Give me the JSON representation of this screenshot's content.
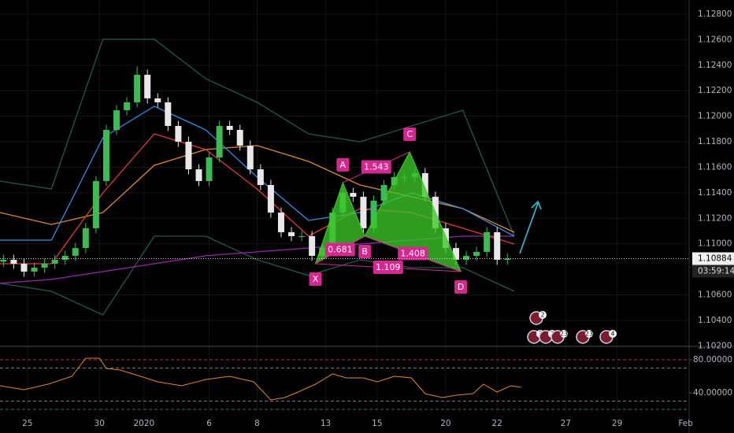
{
  "chart_data": [
    {
      "type": "candlestick",
      "x": [
        1,
        4,
        7,
        10,
        13,
        16,
        19,
        22,
        25,
        28,
        31,
        34,
        37,
        40,
        43,
        46,
        49,
        52,
        55,
        58,
        61,
        64,
        67,
        70,
        73,
        76,
        79,
        82,
        85,
        88,
        91,
        94,
        97,
        100,
        103,
        106,
        109,
        112,
        115,
        118,
        121,
        124,
        127,
        130,
        133,
        136,
        139,
        142,
        145,
        148
      ],
      "open": [
        1.1086,
        1.10875,
        1.10844,
        1.10782,
        1.10813,
        1.10844,
        1.10875,
        1.10906,
        1.10967,
        1.11122,
        1.11492,
        1.11893,
        1.12047,
        1.12109,
        1.12325,
        1.1214,
        1.12109,
        1.11924,
        1.118,
        1.11584,
        1.11492,
        1.11677,
        1.11924,
        1.11893,
        1.1177,
        1.11584,
        1.11461,
        1.11245,
        1.11091,
        1.1106,
        1.1106,
        1.10906,
        1.10967,
        1.11245,
        1.11399,
        1.11369,
        1.11122,
        1.11338,
        1.11461,
        1.11523,
        1.11523,
        1.11554,
        1.11369,
        1.11122,
        1.10967,
        1.10875,
        1.10906,
        1.10937,
        1.11091,
        1.10875
      ],
      "high": [
        1.10915,
        1.10915,
        1.10884,
        1.10853,
        1.10884,
        1.10915,
        1.10946,
        1.11007,
        1.11162,
        1.11532,
        1.11933,
        1.12087,
        1.12149,
        1.1239,
        1.12365,
        1.1218,
        1.12149,
        1.11964,
        1.1184,
        1.11624,
        1.11717,
        1.11964,
        1.11964,
        1.11933,
        1.1181,
        1.11624,
        1.11501,
        1.11285,
        1.11131,
        1.111,
        1.111,
        1.11007,
        1.11285,
        1.11439,
        1.11439,
        1.11409,
        1.11378,
        1.11501,
        1.11563,
        1.11563,
        1.11594,
        1.11594,
        1.11409,
        1.11162,
        1.11007,
        1.10946,
        1.10977,
        1.11131,
        1.11131,
        1.10924
      ],
      "low": [
        1.1082,
        1.10804,
        1.10742,
        1.10742,
        1.10773,
        1.10804,
        1.10835,
        1.10866,
        1.10927,
        1.11082,
        1.11452,
        1.11853,
        1.12007,
        1.12069,
        1.121,
        1.12069,
        1.11884,
        1.1176,
        1.11544,
        1.11452,
        1.11452,
        1.11637,
        1.11853,
        1.1173,
        1.11544,
        1.11421,
        1.11205,
        1.11051,
        1.1102,
        1.1102,
        1.10866,
        1.10866,
        1.10927,
        1.11205,
        1.11329,
        1.11082,
        1.11082,
        1.11298,
        1.11421,
        1.11483,
        1.11483,
        1.11329,
        1.11082,
        1.10927,
        1.10835,
        1.10835,
        1.10866,
        1.10897,
        1.10835,
        1.10835
      ],
      "close": [
        1.10875,
        1.10844,
        1.10782,
        1.10813,
        1.10844,
        1.10875,
        1.10906,
        1.10967,
        1.11122,
        1.11492,
        1.11893,
        1.12047,
        1.12109,
        1.12325,
        1.1214,
        1.12109,
        1.11924,
        1.118,
        1.11584,
        1.11492,
        1.11677,
        1.11924,
        1.11893,
        1.1177,
        1.11584,
        1.11461,
        1.11245,
        1.11091,
        1.1106,
        1.1106,
        1.10906,
        1.10967,
        1.11245,
        1.11399,
        1.11369,
        1.11122,
        1.11338,
        1.11461,
        1.11523,
        1.11523,
        1.11554,
        1.11369,
        1.11122,
        1.10967,
        1.10875,
        1.10906,
        1.10937,
        1.11091,
        1.10875,
        1.10884
      ],
      "up_color": "#3cba54",
      "down_color": "#e8e8e8",
      "xlim": [
        0,
        201
      ],
      "xticks": [
        {
          "value": 8,
          "label": "25"
        },
        {
          "value": 29,
          "label": "30"
        },
        {
          "value": 42,
          "label": "2020"
        },
        {
          "value": 61,
          "label": "6"
        },
        {
          "value": 75,
          "label": "8"
        },
        {
          "value": 95,
          "label": "13"
        },
        {
          "value": 110,
          "label": "15"
        },
        {
          "value": 130,
          "label": "20"
        },
        {
          "value": 145,
          "label": "22"
        },
        {
          "value": 165,
          "label": "27"
        },
        {
          "value": 180,
          "label": "29"
        },
        {
          "value": 200,
          "label": "Feb"
        }
      ],
      "ylim": [
        1.10196,
        1.12911
      ],
      "yticks": [
        {
          "value": 1.128,
          "label": "1.12800"
        },
        {
          "value": 1.126,
          "label": "1.12600"
        },
        {
          "value": 1.124,
          "label": "1.12400"
        },
        {
          "value": 1.122,
          "label": "1.12200"
        },
        {
          "value": 1.12,
          "label": "1.12000"
        },
        {
          "value": 1.118,
          "label": "1.11800"
        },
        {
          "value": 1.116,
          "label": "1.11600"
        },
        {
          "value": 1.114,
          "label": "1.11400"
        },
        {
          "value": 1.112,
          "label": "1.11200"
        },
        {
          "value": 1.11,
          "label": "1.11000"
        },
        {
          "value": 1.106,
          "label": "1.10600"
        },
        {
          "value": 1.104,
          "label": "1.10400"
        },
        {
          "value": 1.102,
          "label": "1.10200"
        }
      ],
      "line_x": [
        0,
        15,
        30,
        45,
        60,
        75,
        90,
        105,
        120,
        135,
        150
      ],
      "lines": [
        {
          "color": "#1e5a50",
          "values": [
            1.11492,
            1.1143,
            1.12603,
            1.12603,
            1.12294,
            1.12109,
            1.11862,
            1.118,
            1.11924,
            1.12047,
            1.1106
          ]
        },
        {
          "color": "#1e5a50",
          "values": [
            1.1069,
            1.10628,
            1.10443,
            1.1106,
            1.1106,
            1.10875,
            1.10752,
            1.10875,
            1.10813,
            1.10813,
            1.10628
          ]
        },
        {
          "color": "#9c27b0",
          "values": [
            1.1069,
            1.10721,
            1.10782,
            1.10844,
            1.10906,
            1.10937,
            1.10967,
            1.10998,
            1.11029,
            1.1106,
            1.1106
          ]
        },
        {
          "color": "#e0892c",
          "values": [
            1.11245,
            1.11152,
            1.11245,
            1.11615,
            1.11739,
            1.1177,
            1.11646,
            1.11461,
            1.11369,
            1.11276,
            1.11091
          ]
        },
        {
          "color": "#2f8de4",
          "values": [
            1.11029,
            1.11029,
            1.11831,
            1.12078,
            1.11893,
            1.11523,
            1.11183,
            1.11245,
            1.11399,
            1.11276,
            1.1106
          ]
        },
        {
          "color": "#e53935",
          "values": [
            1.10844,
            1.10844,
            1.11399,
            1.11862,
            1.11739,
            1.1143,
            1.1106,
            1.11276,
            1.11245,
            1.11122,
            1.10998
          ]
        }
      ],
      "pattern": {
        "color": "#d6268f",
        "points": [
          {
            "label": "X",
            "x": 92,
            "value": 1.10844
          },
          {
            "label": "A",
            "x": 100,
            "value": 1.1148
          },
          {
            "label": "B",
            "x": 106.4,
            "value": 1.1106
          },
          {
            "label": "C",
            "x": 119.5,
            "value": 1.1172
          },
          {
            "label": "D",
            "x": 134.4,
            "value": 1.10782
          }
        ],
        "ratios": [
          0.681,
          1.543,
          1.408,
          1.109
        ]
      },
      "last_price": {
        "value": 1.10884,
        "label": "1.10884"
      },
      "countdown": "03:59:14",
      "events": [
        "2",
        "3",
        "2",
        "23",
        "23",
        "4"
      ]
    },
    {
      "type": "line",
      "x": [
        0,
        7,
        14,
        21,
        25,
        29,
        31,
        35,
        41,
        46,
        53,
        60,
        67,
        74,
        79,
        83,
        87,
        92,
        97,
        101,
        106,
        110,
        115,
        120,
        124,
        129,
        133,
        138,
        141,
        145,
        149,
        152
      ],
      "values": [
        48.6,
        43.8,
        50.5,
        60,
        81.9,
        81.9,
        69.5,
        67.6,
        60,
        53.3,
        48.6,
        56.2,
        60,
        53.3,
        31.4,
        34.3,
        41,
        50.5,
        62.9,
        58.1,
        58.1,
        53.3,
        60,
        58.1,
        39,
        34.3,
        37.1,
        39,
        50.5,
        41,
        48.6,
        46.7
      ],
      "color": "#e0892c",
      "xlim": [
        0,
        201
      ],
      "ylim": [
        15.2,
        96.2
      ],
      "yticks": [
        {
          "value": 80,
          "label": "80.00000"
        },
        {
          "value": 40,
          "label": "40.00000"
        }
      ],
      "levels": [
        {
          "value": 80,
          "color": "#c62828"
        },
        {
          "value": 70,
          "color": "#777777"
        },
        {
          "value": 30,
          "color": "#777777"
        },
        {
          "value": 20,
          "color": "#2e7d32"
        }
      ]
    }
  ]
}
